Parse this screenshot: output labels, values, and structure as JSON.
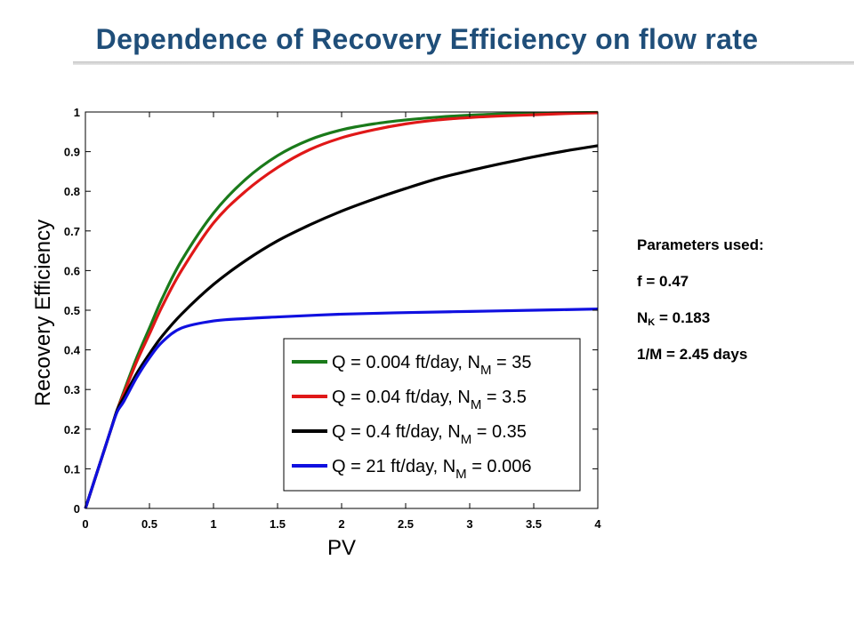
{
  "slide": {
    "title": "Dependence of Recovery Efficiency on flow rate",
    "title_color": "#1F4E79"
  },
  "parameters": {
    "header": "Parameters used:",
    "f": "f = 0.47",
    "nk_base": "N",
    "nk_sub": "K",
    "nk_value": " = 0.183",
    "m": "1/M = 2.45 days"
  },
  "chart_data": {
    "type": "line",
    "title": "",
    "xlabel": "PV",
    "ylabel": "Recovery Efficiency",
    "xlim": [
      0,
      4
    ],
    "ylim": [
      0,
      1
    ],
    "xticks": [
      "0",
      "0.5",
      "1",
      "1.5",
      "2",
      "2.5",
      "3",
      "3.5",
      "4"
    ],
    "yticks": [
      "0",
      "0.1",
      "0.2",
      "0.3",
      "0.4",
      "0.5",
      "0.6",
      "0.7",
      "0.8",
      "0.9",
      "1"
    ],
    "grid": false,
    "legend_position": "bottom-right",
    "series": [
      {
        "legend_prefix": "Q = 0.004 ft/day, N",
        "legend_sub": "M",
        "legend_suffix": " = 35",
        "color": "#1a7a1a",
        "x": [
          0,
          0.05,
          0.1,
          0.15,
          0.2,
          0.25,
          0.3,
          0.4,
          0.5,
          0.6,
          0.75,
          1.0,
          1.25,
          1.5,
          1.75,
          2.0,
          2.25,
          2.5,
          2.75,
          3.0,
          3.25,
          3.5,
          3.75,
          4.0
        ],
        "y": [
          0,
          0.05,
          0.1,
          0.15,
          0.2,
          0.25,
          0.295,
          0.38,
          0.455,
          0.53,
          0.625,
          0.745,
          0.83,
          0.89,
          0.93,
          0.955,
          0.97,
          0.98,
          0.987,
          0.992,
          0.995,
          0.997,
          0.998,
          0.999
        ]
      },
      {
        "legend_prefix": "Q = 0.04 ft/day, N",
        "legend_sub": "M",
        "legend_suffix": " = 3.5",
        "color": "#e01818",
        "x": [
          0,
          0.05,
          0.1,
          0.15,
          0.2,
          0.25,
          0.3,
          0.4,
          0.5,
          0.6,
          0.75,
          1.0,
          1.25,
          1.5,
          1.75,
          2.0,
          2.25,
          2.5,
          2.75,
          3.0,
          3.25,
          3.5,
          3.75,
          4.0
        ],
        "y": [
          0,
          0.05,
          0.1,
          0.15,
          0.2,
          0.25,
          0.29,
          0.37,
          0.44,
          0.51,
          0.6,
          0.72,
          0.8,
          0.86,
          0.905,
          0.935,
          0.955,
          0.97,
          0.98,
          0.986,
          0.99,
          0.993,
          0.996,
          0.998
        ]
      },
      {
        "legend_prefix": "Q = 0.4 ft/day, N",
        "legend_sub": "M",
        "legend_suffix": " = 0.35",
        "color": "#000000",
        "x": [
          0,
          0.05,
          0.1,
          0.15,
          0.2,
          0.25,
          0.3,
          0.4,
          0.5,
          0.6,
          0.75,
          1.0,
          1.25,
          1.5,
          1.75,
          2.0,
          2.25,
          2.5,
          2.75,
          3.0,
          3.25,
          3.5,
          3.75,
          4.0
        ],
        "y": [
          0,
          0.05,
          0.1,
          0.15,
          0.2,
          0.25,
          0.28,
          0.34,
          0.39,
          0.435,
          0.49,
          0.565,
          0.625,
          0.675,
          0.715,
          0.75,
          0.78,
          0.807,
          0.832,
          0.852,
          0.87,
          0.887,
          0.902,
          0.915
        ]
      },
      {
        "legend_prefix": "Q = 21 ft/day, N",
        "legend_sub": "M",
        "legend_suffix": " = 0.006",
        "color": "#1010e0",
        "x": [
          0,
          0.05,
          0.1,
          0.15,
          0.2,
          0.25,
          0.3,
          0.4,
          0.5,
          0.6,
          0.75,
          1.0,
          1.25,
          1.5,
          2.0,
          2.5,
          3.0,
          3.5,
          4.0
        ],
        "y": [
          0,
          0.05,
          0.1,
          0.15,
          0.2,
          0.245,
          0.27,
          0.33,
          0.38,
          0.42,
          0.455,
          0.473,
          0.479,
          0.483,
          0.49,
          0.494,
          0.497,
          0.5,
          0.503
        ]
      }
    ]
  }
}
